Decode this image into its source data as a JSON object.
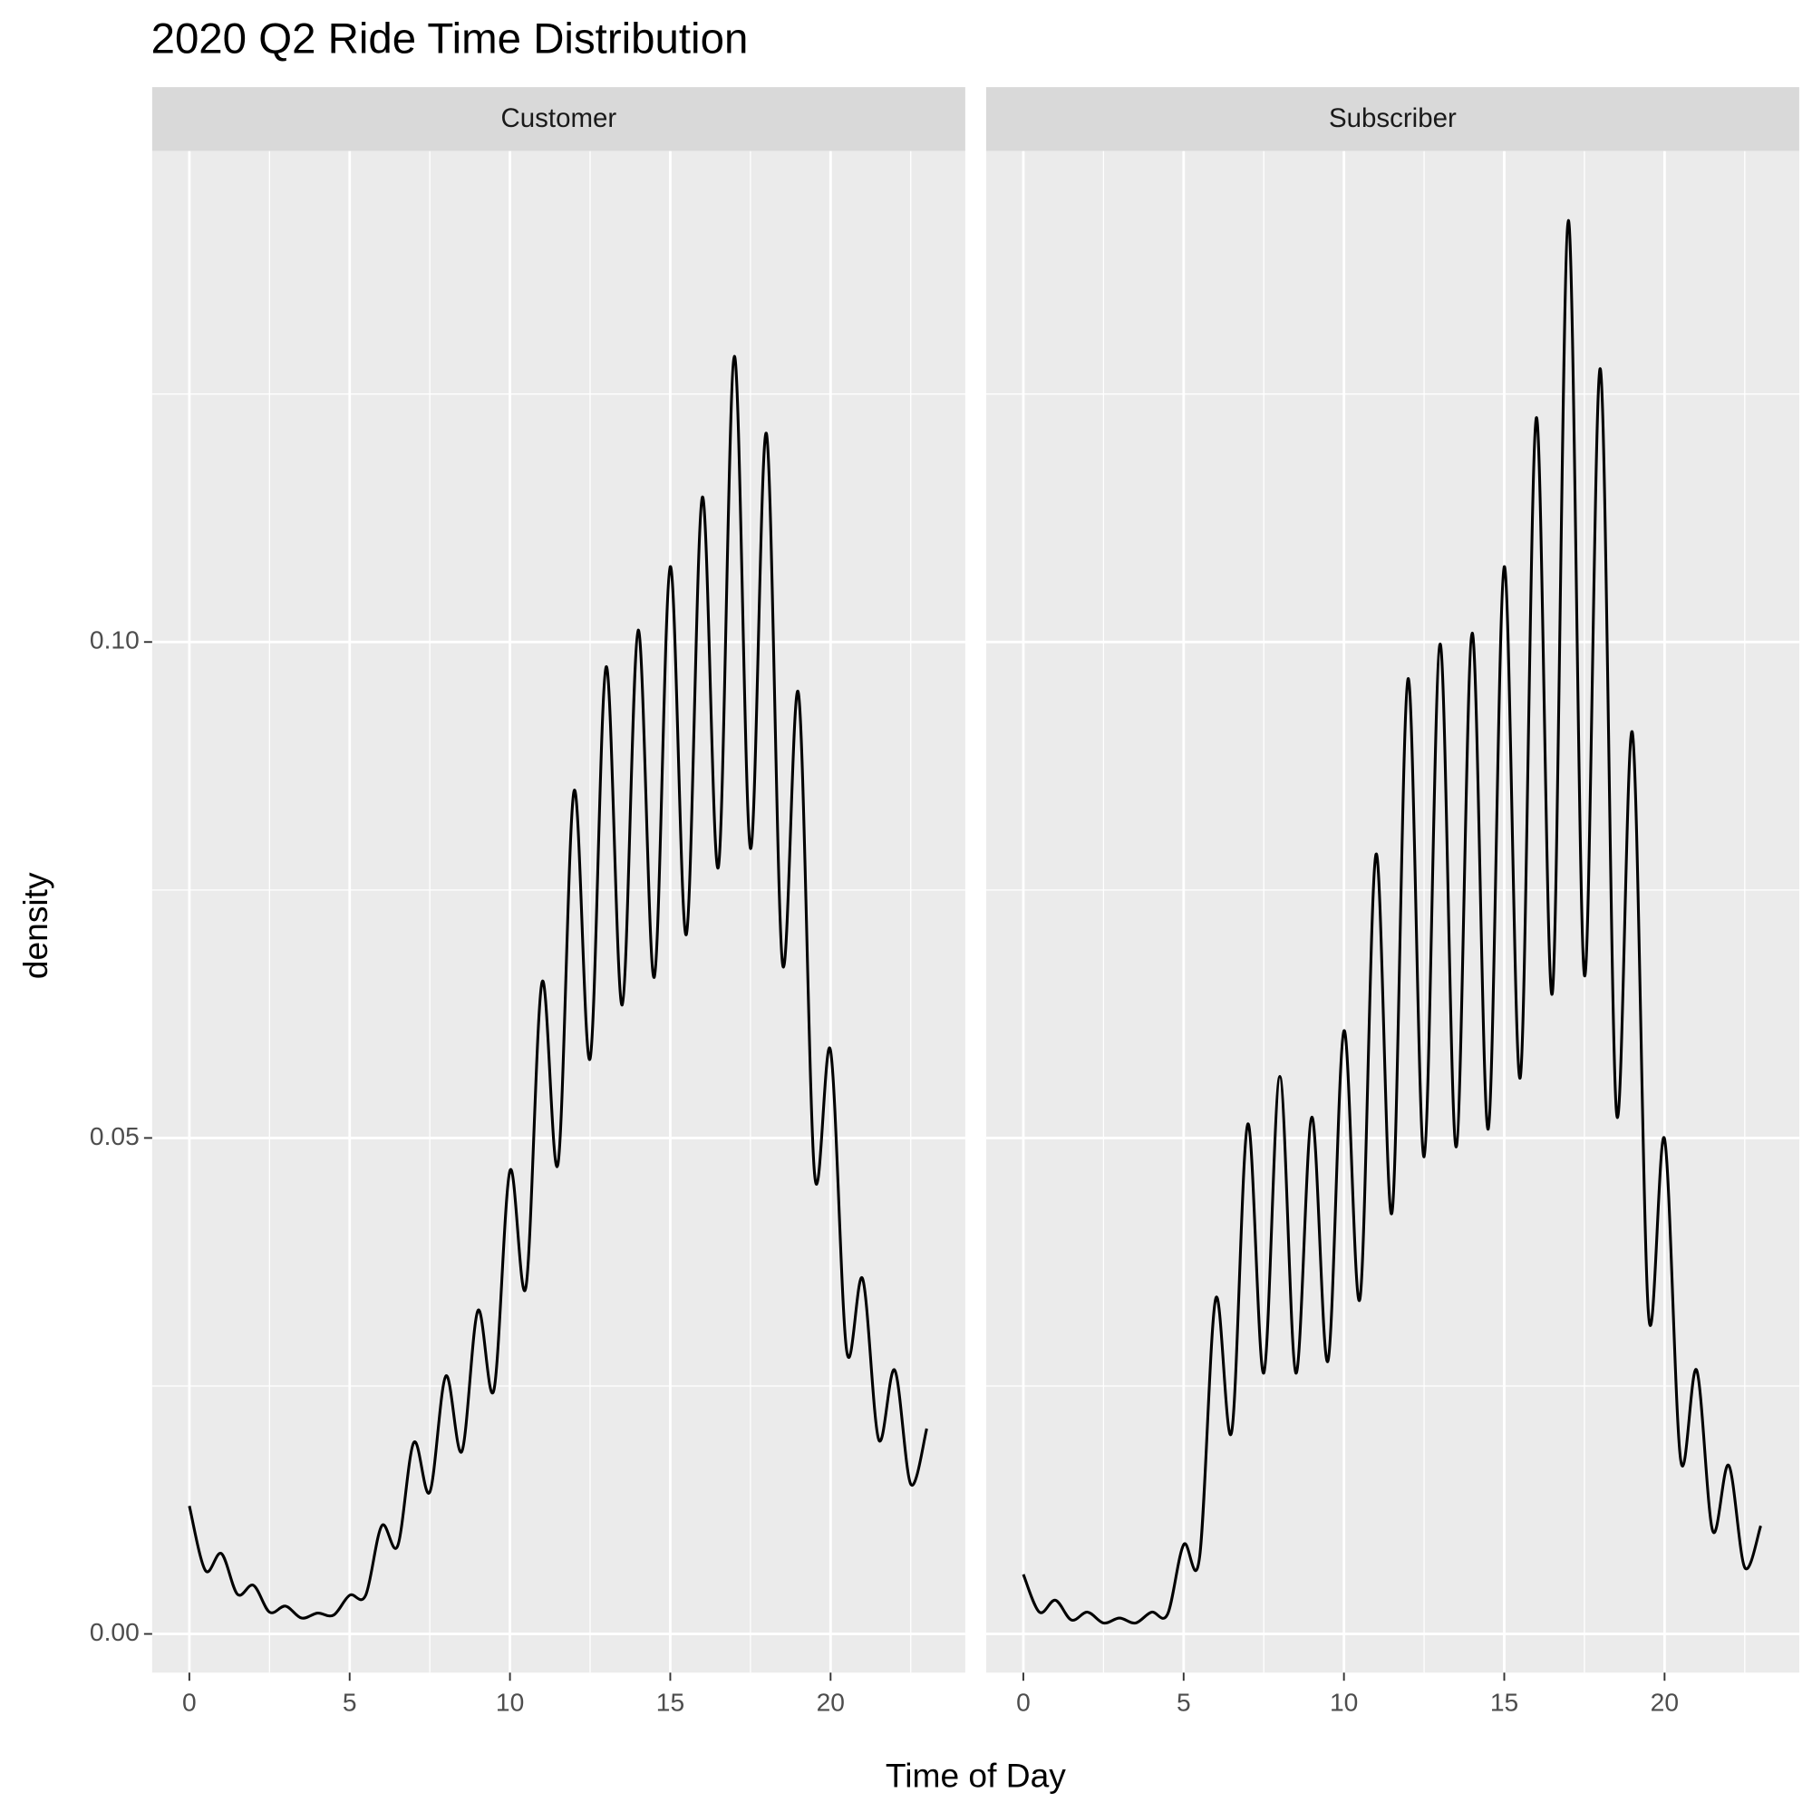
{
  "chart_data": {
    "type": "line",
    "title": "2020 Q2 Ride Time Distribution",
    "x_label": "Time of Day",
    "y_label": "density",
    "facets": true,
    "grid": true,
    "minor_grid": true,
    "x": [
      0,
      0.5,
      1,
      1.5,
      2,
      2.5,
      3,
      3.5,
      4,
      4.5,
      5,
      5.5,
      6,
      6.5,
      7,
      7.5,
      8,
      8.5,
      9,
      9.5,
      10,
      10.5,
      11,
      11.5,
      12,
      12.5,
      13,
      13.5,
      14,
      14.5,
      15,
      15.5,
      16,
      16.5,
      17,
      17.5,
      18,
      18.5,
      19,
      19.5,
      20,
      20.5,
      21,
      21.5,
      22,
      22.5,
      23
    ],
    "series": [
      {
        "name": "Customer",
        "color": "#000000",
        "values": [
          0.0129,
          0.0064,
          0.0081,
          0.004,
          0.0049,
          0.0022,
          0.0028,
          0.0016,
          0.0021,
          0.0019,
          0.0039,
          0.0039,
          0.0109,
          0.0089,
          0.0193,
          0.0143,
          0.026,
          0.0184,
          0.0326,
          0.0246,
          0.0467,
          0.035,
          0.0657,
          0.0474,
          0.085,
          0.058,
          0.0975,
          0.0634,
          0.1012,
          0.0662,
          0.1076,
          0.0705,
          0.1146,
          0.0773,
          0.1288,
          0.0792,
          0.121,
          0.0676,
          0.0948,
          0.0464,
          0.0588,
          0.0286,
          0.0358,
          0.0196,
          0.0266,
          0.0151,
          0.0207
        ]
      },
      {
        "name": "Subscriber",
        "color": "#000000",
        "values": [
          0.006,
          0.0022,
          0.0034,
          0.0014,
          0.0022,
          0.0011,
          0.0016,
          0.0011,
          0.0022,
          0.002,
          0.009,
          0.0078,
          0.0338,
          0.0204,
          0.0514,
          0.0263,
          0.0562,
          0.0263,
          0.0521,
          0.0275,
          0.0608,
          0.0338,
          0.0786,
          0.0425,
          0.0963,
          0.0481,
          0.0998,
          0.0491,
          0.1009,
          0.0509,
          0.1076,
          0.0561,
          0.1226,
          0.0646,
          0.1425,
          0.0664,
          0.1275,
          0.0526,
          0.0908,
          0.0322,
          0.0499,
          0.0176,
          0.0266,
          0.0104,
          0.017,
          0.0067,
          0.0109
        ]
      }
    ],
    "xlim": [
      -1.16,
      24.2
    ],
    "xticks": [
      0,
      5,
      10,
      15,
      20
    ],
    "ylim": [
      -0.0039,
      0.1495
    ],
    "yticks": [
      {
        "value": 0,
        "label": "0.00"
      },
      {
        "value": 0.05,
        "label": "0.05"
      },
      {
        "value": 0.1,
        "label": "0.10"
      }
    ]
  }
}
